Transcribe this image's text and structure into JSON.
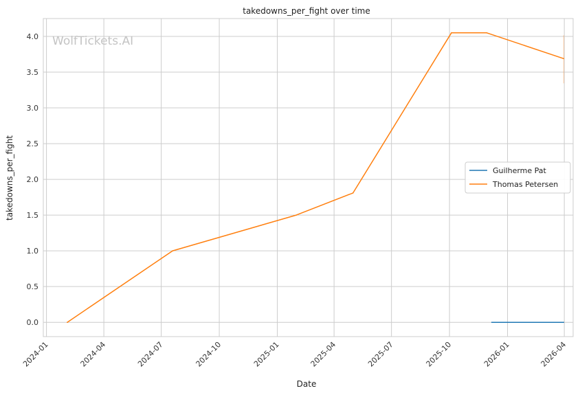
{
  "chart_data": {
    "type": "line",
    "title": "takedowns_per_fight over time",
    "xlabel": "Date",
    "ylabel": "takedowns_per_fight",
    "watermark": "WolfTickets.AI",
    "x_ticks": [
      "2024-01-01",
      "2024-04-01",
      "2024-07-01",
      "2024-10-01",
      "2025-01-01",
      "2025-04-01",
      "2025-07-01",
      "2025-10-01",
      "2026-01-01",
      "2026-04-01"
    ],
    "x_tick_labels": [
      "2024-01",
      "2024-04",
      "2024-07",
      "2024-10",
      "2025-01",
      "2025-04",
      "2025-07",
      "2025-10",
      "2026-01",
      "2026-04"
    ],
    "x_range": [
      "2023-12-27",
      "2026-04-15"
    ],
    "y_ticks": [
      0.0,
      0.5,
      1.0,
      1.5,
      2.0,
      2.5,
      3.0,
      3.5,
      4.0
    ],
    "y_tick_labels": [
      "0.0",
      "0.5",
      "1.0",
      "1.5",
      "2.0",
      "2.5",
      "3.0",
      "3.5",
      "4.0"
    ],
    "ylim": [
      -0.2,
      4.25
    ],
    "grid": true,
    "legend_position": "center-right",
    "series": [
      {
        "name": "Guilherme Pat",
        "color": "#1f77b4",
        "points": [
          {
            "x": "2025-12-07",
            "y": 0.0
          },
          {
            "x": "2026-03-31",
            "y": 0.0
          }
        ]
      },
      {
        "name": "Thomas Petersen",
        "color": "#ff7f0e",
        "points": [
          {
            "x": "2024-02-03",
            "y": 0.0
          },
          {
            "x": "2024-07-19",
            "y": 1.0
          },
          {
            "x": "2025-01-31",
            "y": 1.5
          },
          {
            "x": "2025-05-01",
            "y": 1.81
          },
          {
            "x": "2025-10-04",
            "y": 4.05
          },
          {
            "x": "2025-11-29",
            "y": 4.05
          },
          {
            "x": "2026-03-31",
            "y": 3.69
          }
        ]
      }
    ]
  }
}
